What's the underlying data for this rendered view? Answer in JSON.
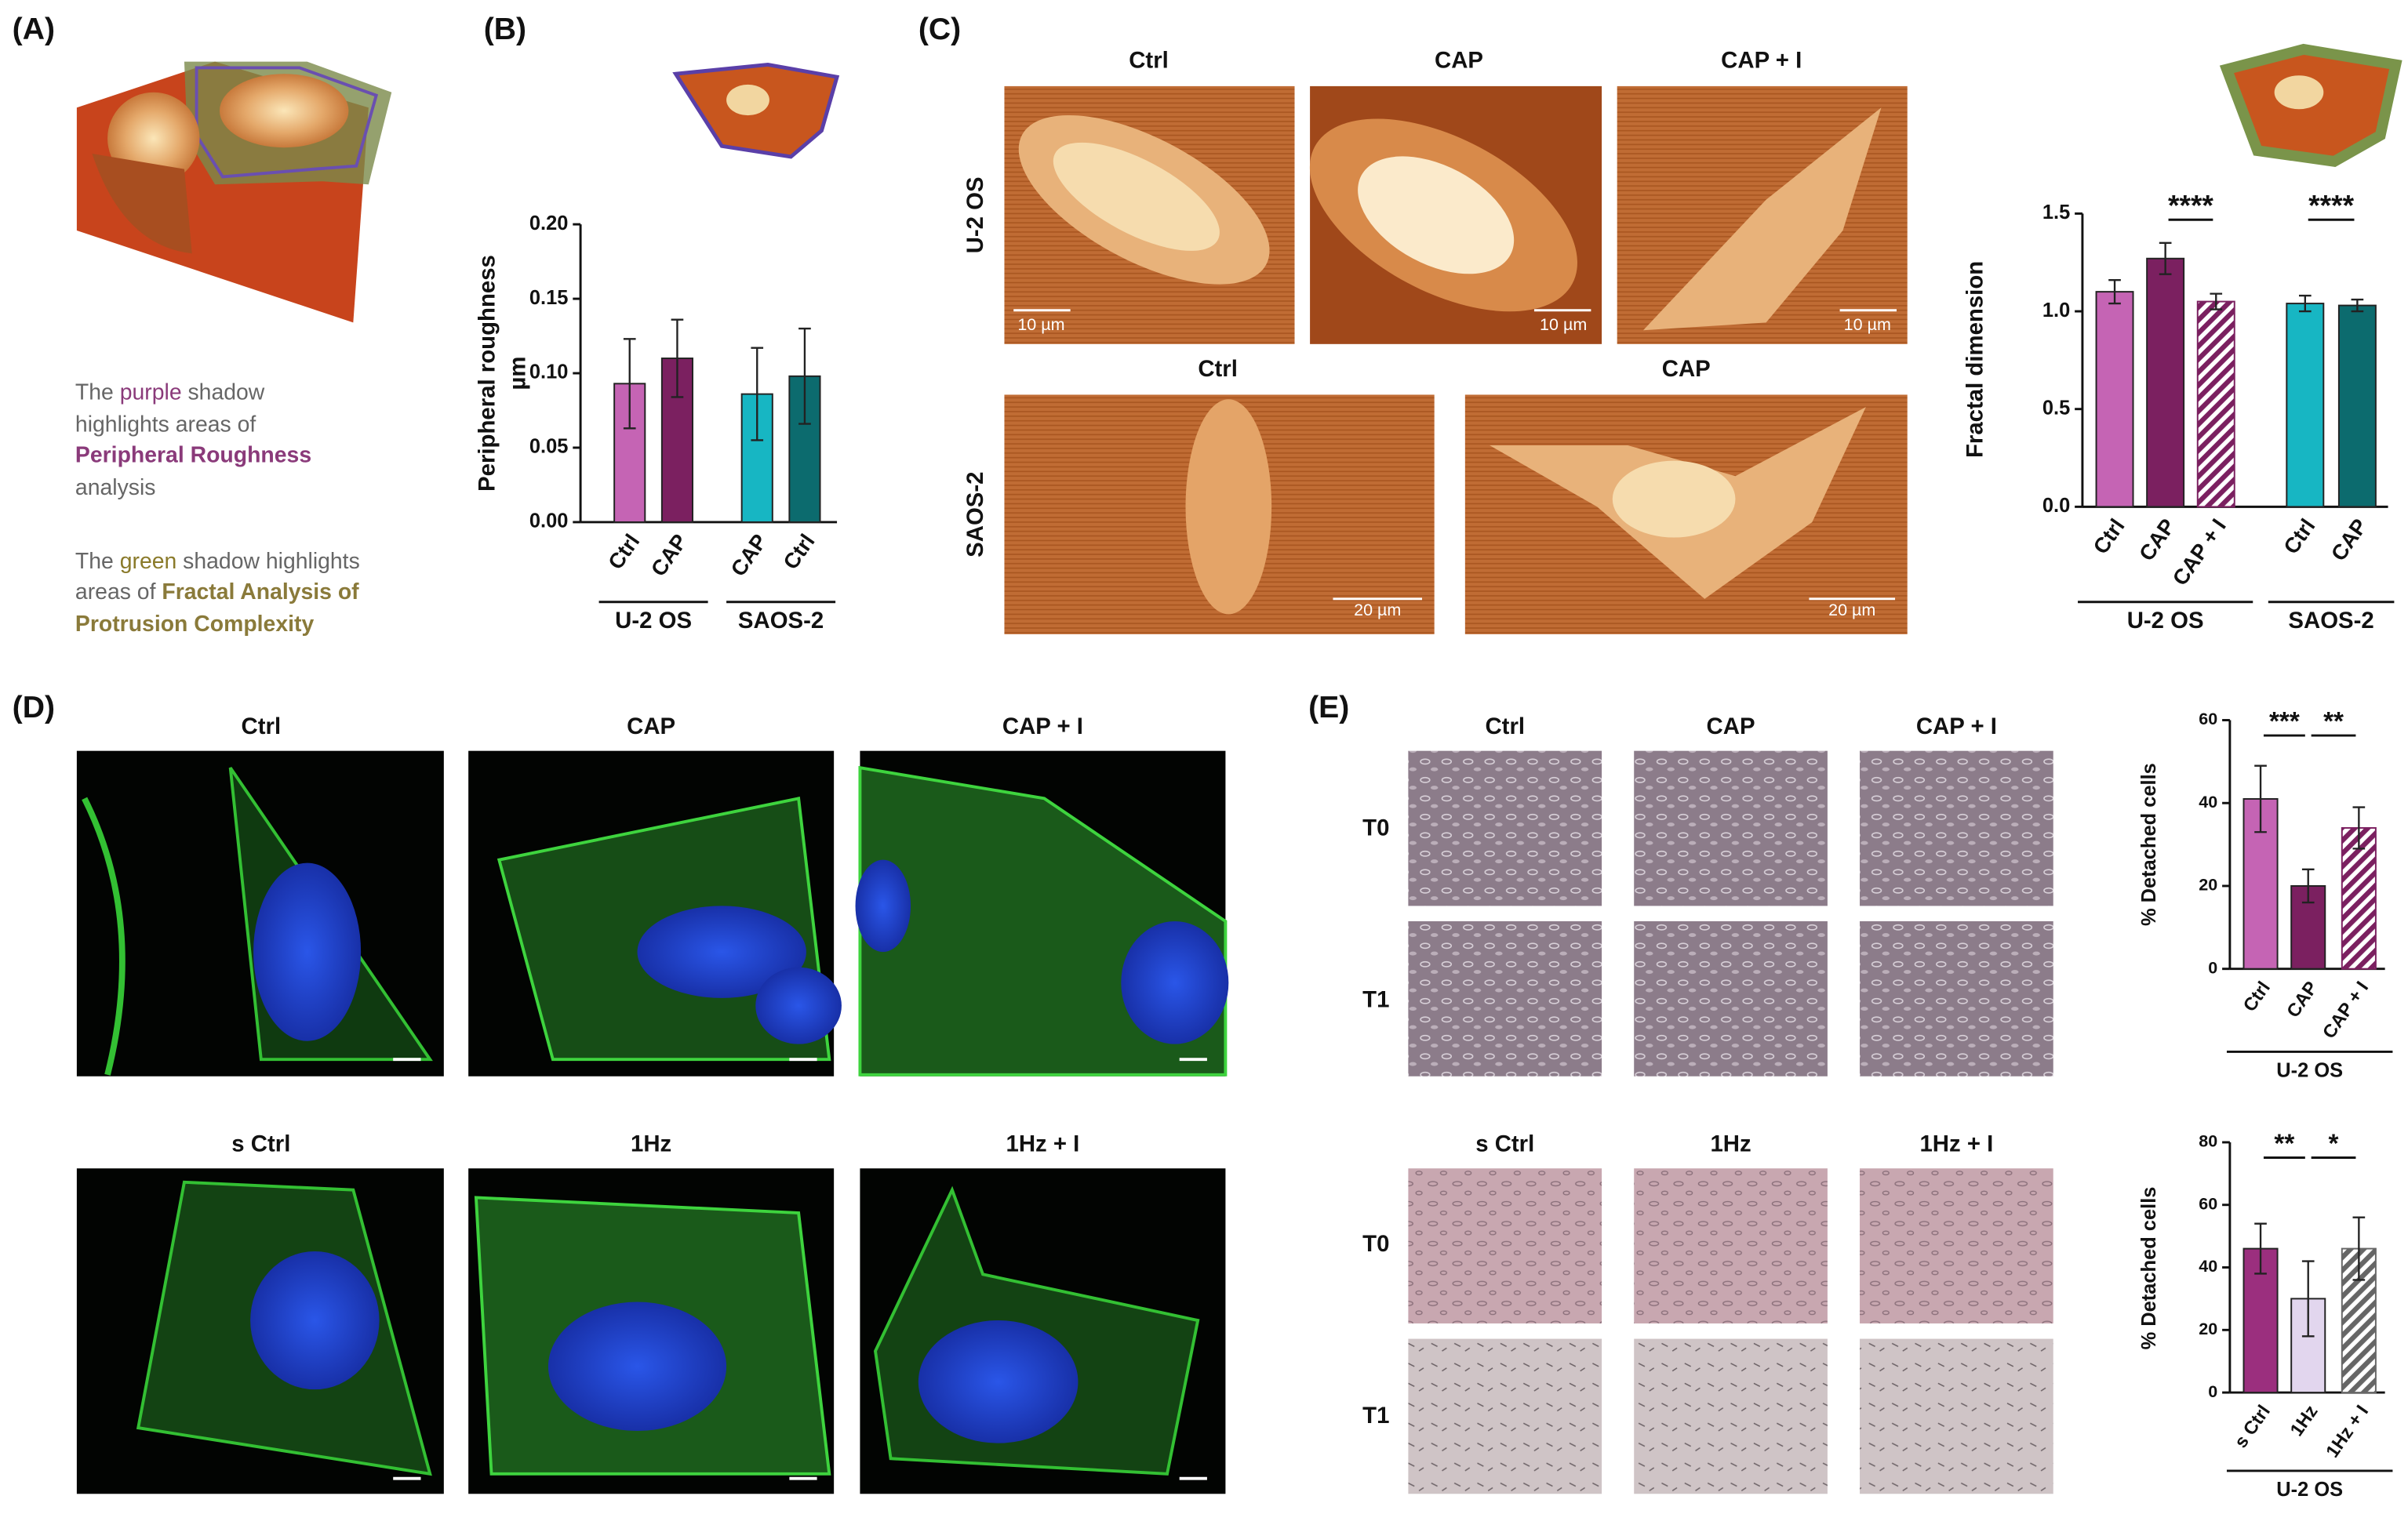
{
  "panel_labels": [
    "(A)",
    "(B)",
    "(C)",
    "(D)",
    "(E)"
  ],
  "panel_a": {
    "purple_note": [
      "The ",
      "purple",
      " shadow",
      "highlights areas of",
      "Peripheral Roughness",
      "analysis"
    ],
    "green_note": [
      "The ",
      "green",
      " shadow highlights",
      "areas of ",
      "Fractal Analysis of",
      "Protrusion Complexity"
    ]
  },
  "panel_c_images": {
    "columns_top": [
      "Ctrl",
      "CAP",
      "CAP + I"
    ],
    "columns_bottom": [
      "Ctrl",
      "CAP"
    ],
    "rows": [
      "U-2 OS",
      "SAOS-2"
    ],
    "scale_bars": [
      "10 µm",
      "10 µm",
      "10 µm",
      "20 µm",
      "20 µm"
    ]
  },
  "panel_d_images": {
    "columns_top": [
      "Ctrl",
      "CAP",
      "CAP + I"
    ],
    "columns_bottom": [
      "s Ctrl",
      "1Hz",
      "1Hz + I"
    ]
  },
  "panel_e_images": {
    "columns_top": [
      "Ctrl",
      "CAP",
      "CAP + I"
    ],
    "columns_bottom": [
      "s Ctrl",
      "1Hz",
      "1Hz + I"
    ],
    "rows_top": [
      "T0",
      "T1"
    ],
    "rows_bottom": [
      "T0",
      "T1"
    ]
  },
  "chart_data": [
    {
      "type": "bar",
      "y_label": "Peripheral roughness",
      "y_unit": "µm",
      "ylim": [
        0,
        0.2
      ],
      "yticks": [
        {
          "value": 0,
          "label": "0.00"
        },
        {
          "value": 0.05,
          "label": "0.05"
        },
        {
          "value": 0.1,
          "label": "0.10"
        },
        {
          "value": 0.15,
          "label": "0.15"
        },
        {
          "value": 0.2,
          "label": "0.20"
        }
      ],
      "groups": [
        {
          "name": "U-2 OS",
          "categories": [
            "Ctrl",
            "CAP"
          ],
          "values": [
            0.093,
            0.11
          ],
          "errors": [
            0.03,
            0.026
          ],
          "colors": [
            "#c564b4",
            "#7b2060"
          ],
          "hatched": [
            false,
            false
          ]
        },
        {
          "name": "SAOS-2",
          "categories": [
            "CAP",
            "Ctrl"
          ],
          "values": [
            0.086,
            0.098
          ],
          "errors": [
            0.031,
            0.032
          ],
          "colors": [
            "#17b6c3",
            "#0c6b6e"
          ],
          "hatched": [
            false,
            false
          ]
        }
      ],
      "significance": []
    },
    {
      "type": "bar",
      "y_label": "Fractal dimension",
      "ylim": [
        0,
        1.5
      ],
      "yticks": [
        {
          "value": 0,
          "label": "0.0"
        },
        {
          "value": 0.5,
          "label": "0.5"
        },
        {
          "value": 1,
          "label": "1.0"
        },
        {
          "value": 1.5,
          "label": "1.5"
        }
      ],
      "groups": [
        {
          "name": "U-2 OS",
          "categories": [
            "Ctrl",
            "CAP",
            "CAP + I"
          ],
          "values": [
            1.1,
            1.27,
            1.05
          ],
          "errors": [
            0.06,
            0.08,
            0.04
          ],
          "colors": [
            "#c564b4",
            "#7b2060",
            "#7b2060"
          ],
          "hatched": [
            false,
            false,
            true
          ]
        },
        {
          "name": "SAOS-2",
          "categories": [
            "Ctrl",
            "CAP"
          ],
          "values": [
            1.04,
            1.03
          ],
          "errors": [
            0.04,
            0.03
          ],
          "colors": [
            "#17b6c3",
            "#0c6b6e"
          ],
          "hatched": [
            false,
            false
          ]
        }
      ],
      "significance": [
        {
          "label": "****",
          "from": [
            0,
            1
          ],
          "to": [
            0,
            2
          ]
        },
        {
          "label": "****",
          "from": [
            1,
            0
          ],
          "to": [
            1,
            1
          ]
        }
      ]
    },
    {
      "type": "bar",
      "y_label": "% Detached cells",
      "ylim": [
        0,
        60
      ],
      "yticks": [
        0,
        20,
        40,
        60
      ],
      "groups": [
        {
          "name": "U-2 OS",
          "categories": [
            "Ctrl",
            "CAP",
            "CAP + I"
          ],
          "values": [
            41,
            20,
            34
          ],
          "errors": [
            8,
            4,
            5
          ],
          "colors": [
            "#c564b4",
            "#7b2060",
            "#7b2060"
          ],
          "hatched": [
            false,
            false,
            true
          ]
        }
      ],
      "significance": [
        {
          "label": "***",
          "from": [
            0,
            0
          ],
          "to": [
            0,
            1
          ]
        },
        {
          "label": "**",
          "from": [
            0,
            1
          ],
          "to": [
            0,
            2
          ]
        }
      ]
    },
    {
      "type": "bar",
      "y_label": "% Detached cells",
      "ylim": [
        0,
        80
      ],
      "yticks": [
        0,
        20,
        40,
        60,
        80
      ],
      "groups": [
        {
          "name": "U-2 OS",
          "categories": [
            "s Ctrl",
            "1Hz",
            "1Hz + I"
          ],
          "values": [
            46,
            30,
            46
          ],
          "errors": [
            8,
            12,
            10
          ],
          "colors": [
            "#9b2f7e",
            "#e2d6ee",
            "#666666"
          ],
          "hatched": [
            false,
            false,
            true
          ]
        }
      ],
      "significance": [
        {
          "label": "**",
          "from": [
            0,
            0
          ],
          "to": [
            0,
            1
          ]
        },
        {
          "label": "*",
          "from": [
            0,
            1
          ],
          "to": [
            0,
            2
          ]
        }
      ]
    }
  ]
}
